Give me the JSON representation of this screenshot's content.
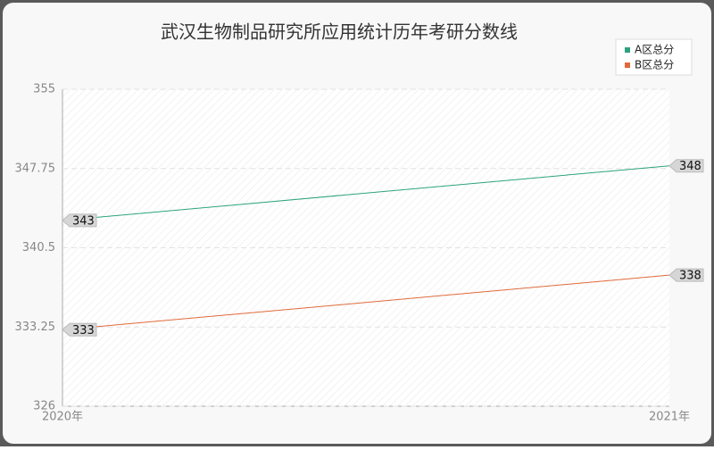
{
  "chart_data": {
    "type": "line",
    "title": "武汉生物制品研究所应用统计历年考研分数线",
    "categories": [
      "2020年",
      "2021年"
    ],
    "series": [
      {
        "name": "A区总分",
        "color": "#2ca37f",
        "values": [
          343,
          348
        ]
      },
      {
        "name": "B区总分",
        "color": "#e06a3b",
        "values": [
          333,
          338
        ]
      }
    ],
    "ylim": [
      326,
      355
    ],
    "yticks": [
      326,
      333.25,
      340.5,
      347.75,
      355
    ],
    "grid": true,
    "legend": "top-right"
  }
}
